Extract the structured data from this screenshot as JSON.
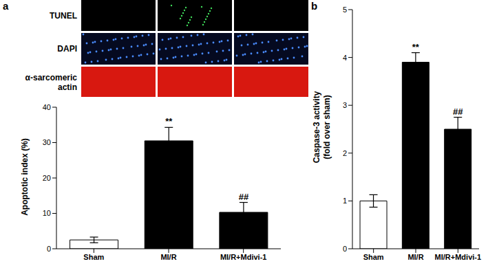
{
  "figure": {
    "panel_labels": [
      "a",
      "b"
    ],
    "image_rows": [
      "TUNEL",
      "DAPI",
      "α-sarcomeric actin"
    ]
  },
  "chart_data": [
    {
      "type": "bar",
      "categories": [
        "Sham",
        "MI/R",
        "MI/R+Mdivi-1"
      ],
      "values": [
        2.5,
        30.5,
        10.3
      ],
      "errors": [
        0.8,
        3.8,
        2.8
      ],
      "colors": [
        "#ffffff",
        "#000000",
        "#000000"
      ],
      "annotations": [
        null,
        "**",
        "##"
      ],
      "ylabel": "Apoptotic index (%)",
      "ylim": [
        0,
        40
      ],
      "yticks": [
        0,
        10,
        20,
        30,
        40
      ]
    },
    {
      "type": "bar",
      "categories": [
        "Sham",
        "MI/R",
        "MI/R+Mdivi-1"
      ],
      "values": [
        1.0,
        3.9,
        2.5
      ],
      "errors": [
        0.13,
        0.2,
        0.25
      ],
      "colors": [
        "#ffffff",
        "#000000",
        "#000000"
      ],
      "annotations": [
        null,
        "**",
        "##"
      ],
      "ylabel": [
        "Caspase-3 activity",
        "(fold over sham)"
      ],
      "ylim": [
        0,
        5
      ],
      "yticks": [
        0,
        1,
        2,
        3,
        4,
        5
      ]
    }
  ]
}
